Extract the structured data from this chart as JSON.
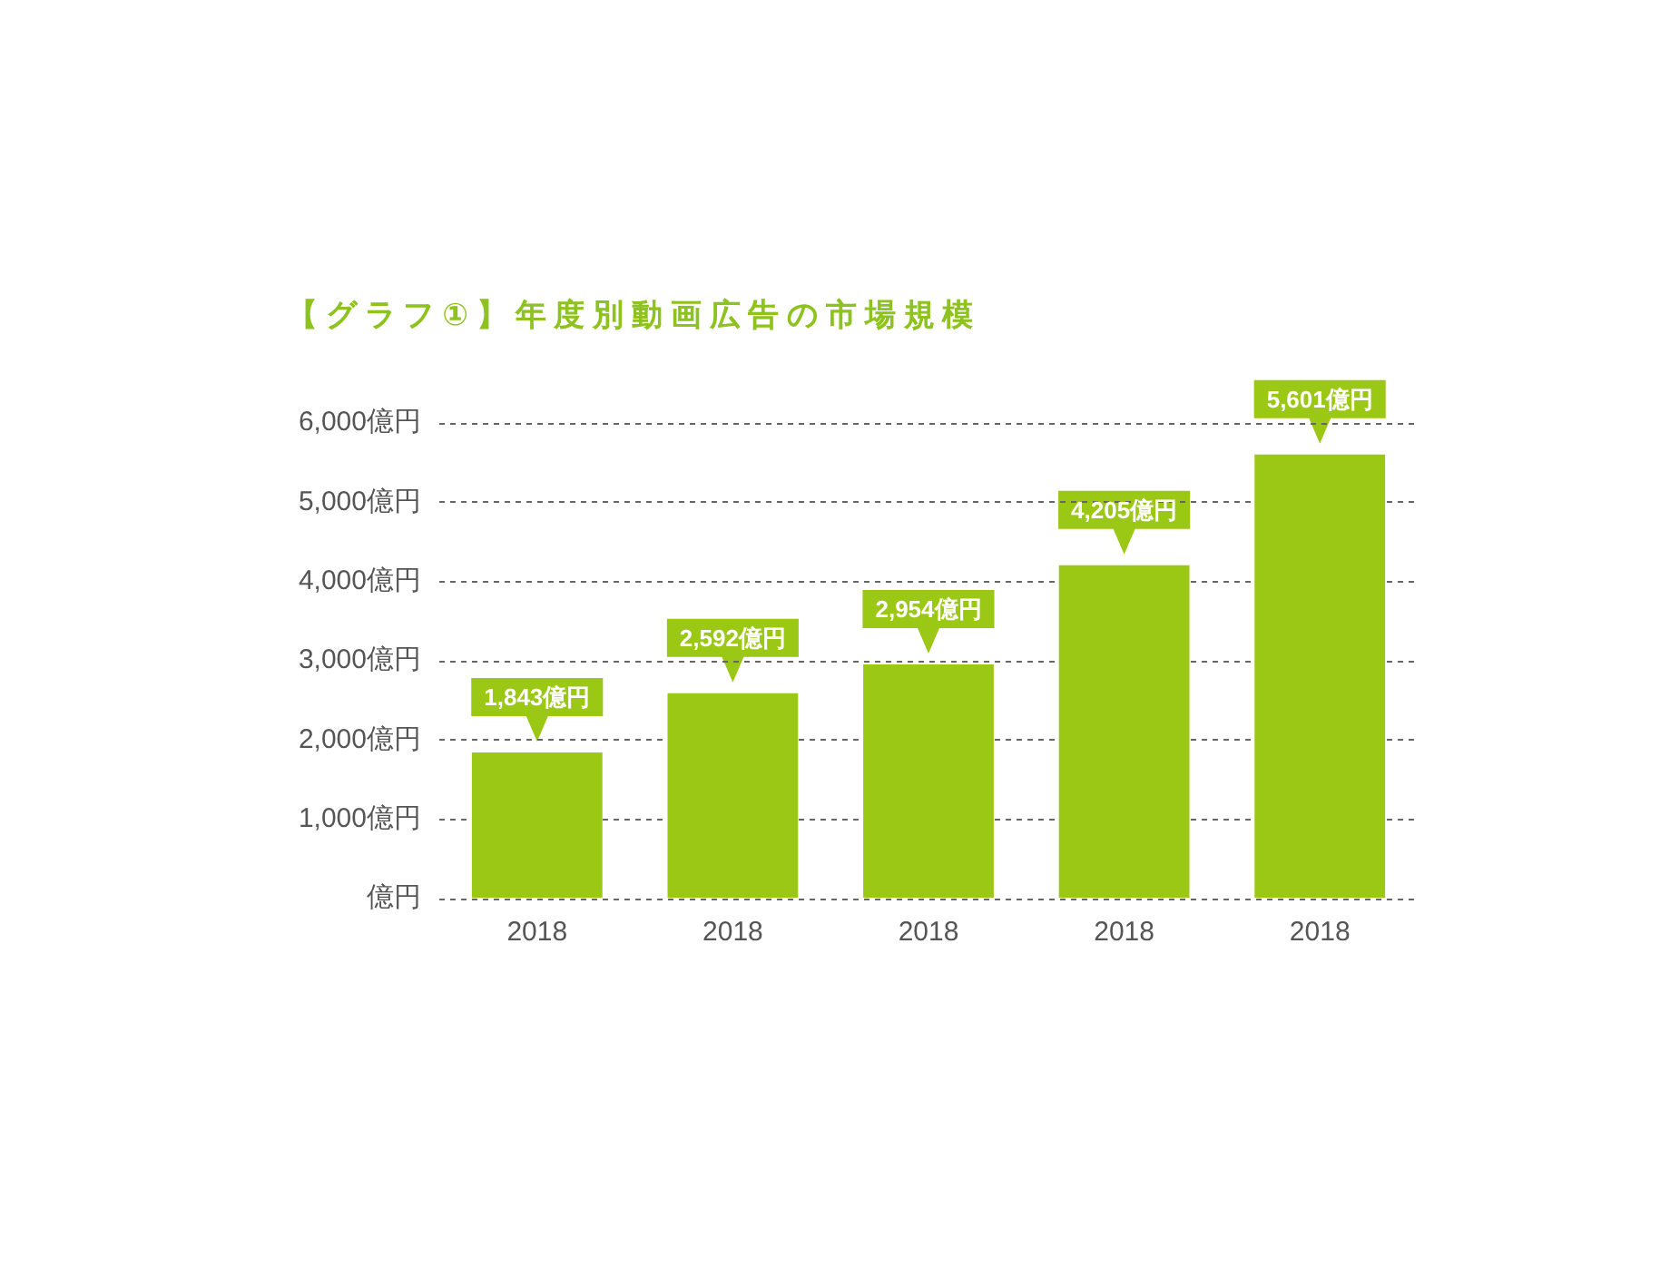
{
  "chart_data": {
    "type": "bar",
    "title": "【グラフ①】年度別動画広告の市場規模",
    "categories": [
      "2018",
      "2018",
      "2018",
      "2018",
      "2018"
    ],
    "values": [
      1843,
      2592,
      2954,
      4205,
      5601
    ],
    "color": "#9bc715",
    "value_labels": [
      "1,843億円",
      "2,592億円",
      "2,954億円",
      "4,205億円",
      "5,601億円"
    ],
    "ylim": [
      0,
      6000
    ],
    "yticks": [
      {
        "value": 0,
        "label": "億円"
      },
      {
        "value": 1000,
        "label": "1,000億円"
      },
      {
        "value": 2000,
        "label": "2,000億円"
      },
      {
        "value": 3000,
        "label": "3,000億円"
      },
      {
        "value": 4000,
        "label": "4,000億円"
      },
      {
        "value": 5000,
        "label": "5,000億円"
      },
      {
        "value": 6000,
        "label": "6,000億円"
      }
    ],
    "grid": "y"
  }
}
